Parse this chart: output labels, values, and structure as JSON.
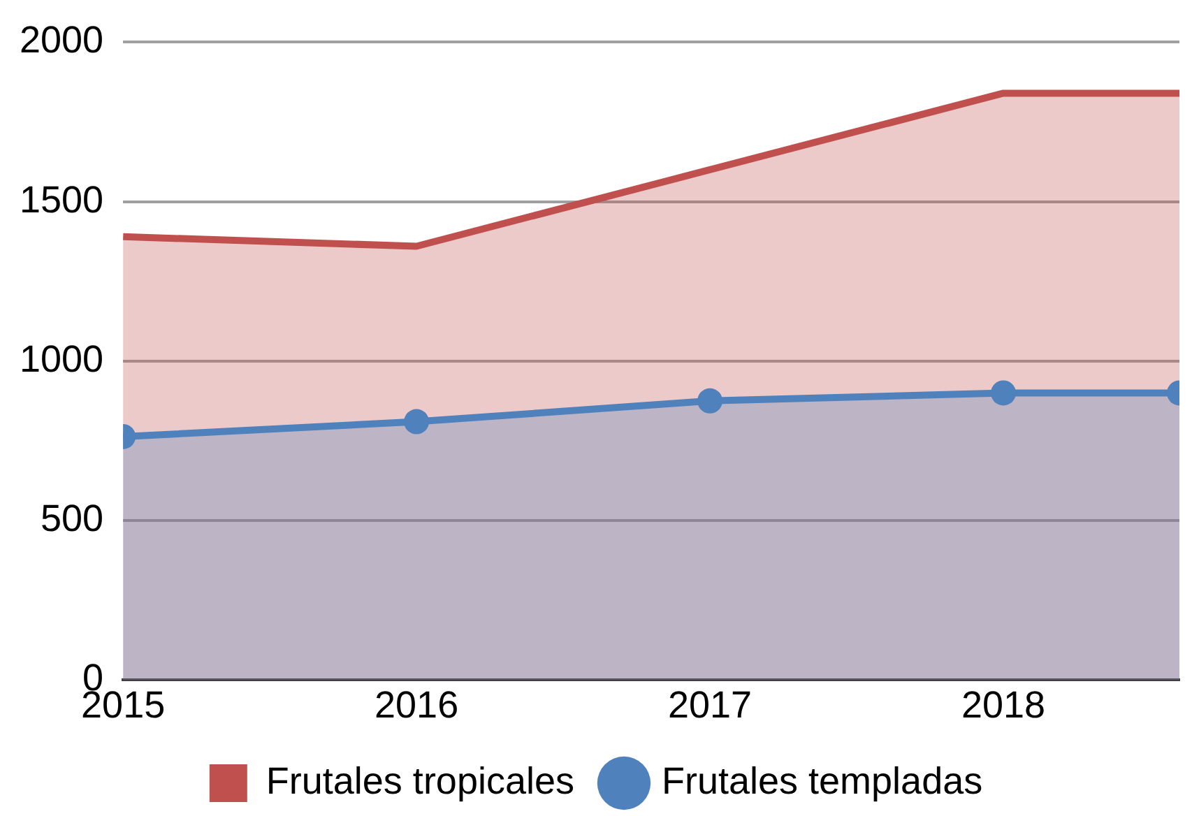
{
  "chart_data": {
    "type": "area",
    "x": [
      2015,
      2016,
      2017,
      2018,
      2018.6
    ],
    "series": [
      {
        "name": "Frutales tropicales",
        "color": "#c0504d",
        "marker": "none",
        "values": [
          1390,
          1360,
          1600,
          1840,
          1840
        ]
      },
      {
        "name": "Frutales templadas",
        "color": "#4f81bd",
        "marker": "circle",
        "values": [
          763,
          810,
          875,
          900,
          900
        ]
      }
    ],
    "xlim": [
      2015,
      2018.6
    ],
    "xticks": [
      2015,
      2016,
      2017,
      2018
    ],
    "ylim": [
      0,
      2000
    ],
    "yticks": [
      0,
      500,
      1000,
      1500,
      2000
    ],
    "grid": "y",
    "legend": "bottom"
  }
}
